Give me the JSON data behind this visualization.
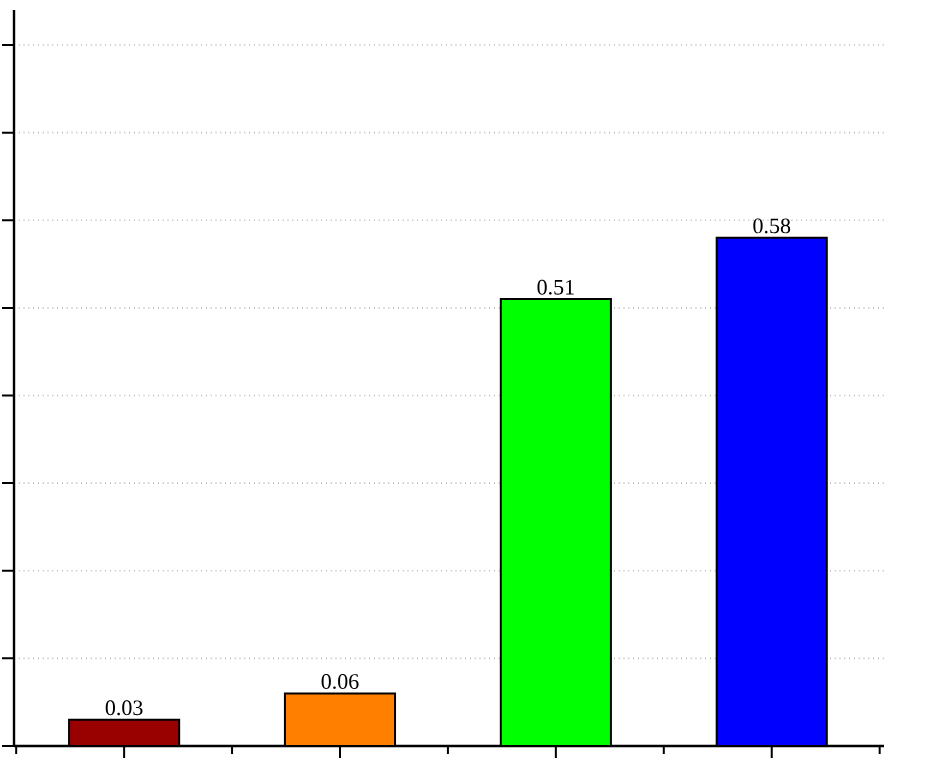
{
  "chart_data": {
    "type": "bar",
    "categories": [
      null,
      null,
      null,
      null
    ],
    "values": [
      0.03,
      0.06,
      0.51,
      0.58
    ],
    "colors": [
      "#990000",
      "#ff8000",
      "#00ff00",
      "#0000ff"
    ],
    "ylim": [
      0,
      0.84
    ],
    "yticks": [
      {
        "value": 0,
        "label": null
      },
      {
        "value": 0.1,
        "label": null
      },
      {
        "value": 0.2,
        "label": null
      },
      {
        "value": 0.3,
        "label": null
      },
      {
        "value": 0.4,
        "label": null
      },
      {
        "value": 0.5,
        "label": null
      },
      {
        "value": 0.6,
        "label": null
      },
      {
        "value": 0.7,
        "label": null
      },
      {
        "value": 0.8,
        "label": null
      }
    ],
    "grid": "y",
    "data_labels": true
  }
}
